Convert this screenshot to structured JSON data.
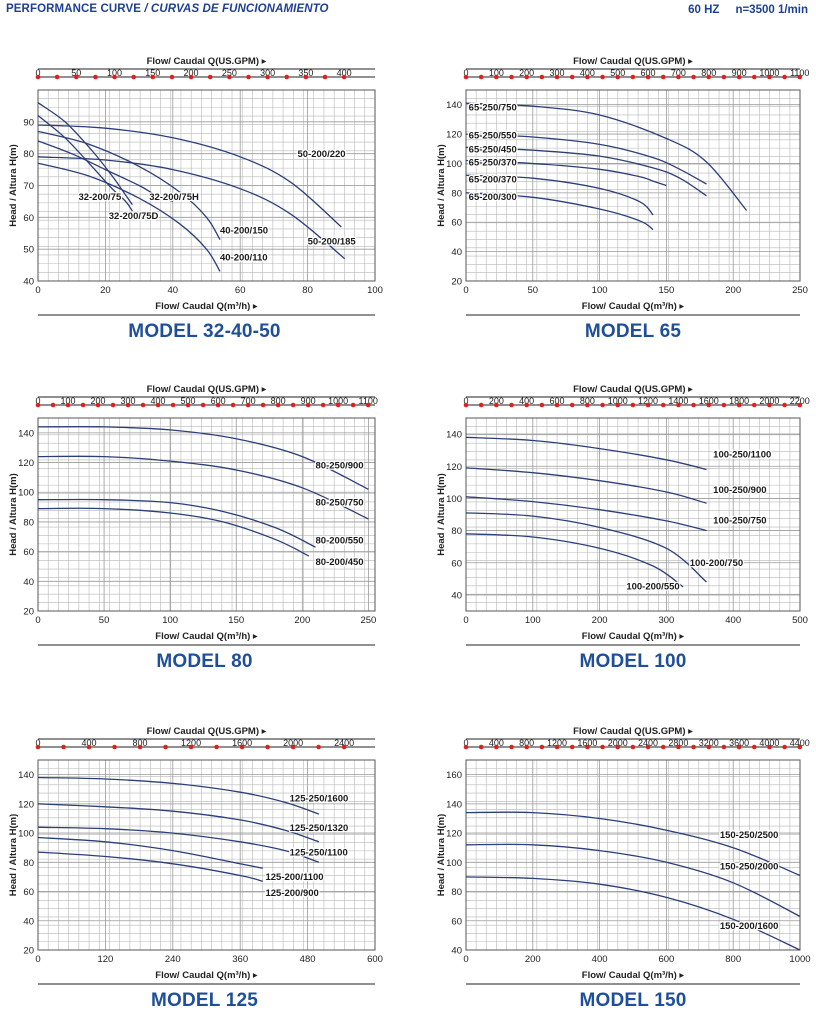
{
  "header": {
    "title": "PERFORMANCE CURVE",
    "title_es": "/ CURVAS DE FUNCIONAMIENTO",
    "frequency": "60 HZ",
    "speed": "n=3500 1/min"
  },
  "colors": {
    "curve": "#2c3e78",
    "grid": "#b8b8b8",
    "marker": "#e0211b",
    "title": "#1f4f9b",
    "header": "#1f3f94"
  },
  "axis_text": {
    "top_label": "Flow/ Caudal Q(US.GPM)",
    "bottom_label": "Flow/ Caudal Q(m³/h)",
    "y_label": "Head / Altura H(m)"
  },
  "chart_data": [
    {
      "type": "line",
      "title": "MODEL 32-40-50",
      "xlabel": "Flow/ Caudal Q(m³/h)",
      "x2label": "Flow/ Caudal Q(US.GPM)",
      "ylabel": "Head / Altura H(m)",
      "xlim": [
        0,
        100
      ],
      "ylim": [
        40,
        100
      ],
      "xticks": [
        0,
        20,
        40,
        60,
        80,
        100
      ],
      "yticks": [
        40,
        50,
        60,
        70,
        80,
        90
      ],
      "x2ticks": [
        0,
        50,
        100,
        150,
        200,
        250,
        300,
        350,
        400
      ],
      "x2_per_x": 4.403,
      "series": [
        {
          "name": "50-200/220",
          "x": [
            0,
            20,
            40,
            60,
            75,
            90
          ],
          "y": [
            89,
            88,
            85,
            79,
            71,
            57
          ]
        },
        {
          "name": "50-200/185",
          "x": [
            0,
            20,
            40,
            60,
            75,
            91
          ],
          "y": [
            79,
            78,
            75,
            69,
            61,
            47
          ]
        },
        {
          "name": "40-200/150",
          "x": [
            0,
            15,
            30,
            42,
            50,
            54
          ],
          "y": [
            87,
            83,
            76,
            68,
            60,
            53
          ]
        },
        {
          "name": "40-200/110",
          "x": [
            0,
            15,
            30,
            42,
            50,
            54
          ],
          "y": [
            77,
            73,
            66,
            58,
            50,
            43
          ]
        },
        {
          "name": "32-200/75H",
          "x": [
            0,
            10,
            20,
            30,
            35,
            40
          ],
          "y": [
            84,
            80,
            75,
            70,
            67,
            65
          ]
        },
        {
          "name": "32-200/75",
          "x": [
            0,
            8,
            16,
            22,
            26,
            28
          ],
          "y": [
            96,
            90,
            81,
            73,
            67,
            64
          ]
        },
        {
          "name": "32-200/75D",
          "x": [
            0,
            8,
            16,
            22,
            26,
            28
          ],
          "y": [
            92,
            85,
            76,
            69,
            65,
            62
          ]
        }
      ],
      "labels": [
        {
          "text": "50-200/220",
          "x": 77,
          "y": 79
        },
        {
          "text": "50-200/185",
          "x": 80,
          "y": 51.5
        },
        {
          "text": "40-200/150",
          "x": 54,
          "y": 55
        },
        {
          "text": "40-200/110",
          "x": 54,
          "y": 46.5
        },
        {
          "text": "32-200/75H",
          "x": 33,
          "y": 65.5
        },
        {
          "text": "32-200/75",
          "x": 12,
          "y": 65.5
        },
        {
          "text": "32-200/75D",
          "x": 21,
          "y": 59.5
        }
      ]
    },
    {
      "type": "line",
      "title": "MODEL 65",
      "xlabel": "Flow/ Caudal Q(m³/h)",
      "x2label": "Flow/ Caudal Q(US.GPM)",
      "ylabel": "Head / Altura H(m)",
      "xlim": [
        0,
        250
      ],
      "ylim": [
        20,
        150
      ],
      "xticks": [
        0,
        50,
        100,
        150,
        200,
        250
      ],
      "yticks": [
        20,
        40,
        60,
        80,
        100,
        120,
        140
      ],
      "x2ticks": [
        0,
        100,
        200,
        300,
        400,
        500,
        600,
        700,
        800,
        900,
        1000,
        1100
      ],
      "x2_per_x": 4.403,
      "series": [
        {
          "name": "65-250/750",
          "x": [
            0,
            50,
            100,
            150,
            180,
            210
          ],
          "y": [
            141,
            139,
            133,
            117,
            101,
            68
          ]
        },
        {
          "name": "65-250/550",
          "x": [
            0,
            50,
            100,
            140,
            160,
            180
          ],
          "y": [
            120,
            118,
            113,
            104,
            96,
            86
          ]
        },
        {
          "name": "65-250/450",
          "x": [
            0,
            50,
            100,
            140,
            160,
            180
          ],
          "y": [
            111,
            109,
            105,
            97,
            90,
            78
          ]
        },
        {
          "name": "65-250/370",
          "x": [
            0,
            50,
            100,
            130,
            140,
            150
          ],
          "y": [
            102,
            100,
            96,
            91,
            88,
            85
          ]
        },
        {
          "name": "65-200/370",
          "x": [
            0,
            50,
            100,
            130,
            140
          ],
          "y": [
            92,
            90,
            83,
            74,
            65
          ]
        },
        {
          "name": "65-200/300",
          "x": [
            0,
            50,
            100,
            130,
            140
          ],
          "y": [
            80,
            77,
            69,
            61,
            55
          ]
        }
      ],
      "labels": [
        {
          "text": "65-250/750",
          "x": 2,
          "y": 136
        },
        {
          "text": "65-250/550",
          "x": 2,
          "y": 117
        },
        {
          "text": "65-250/450",
          "x": 2,
          "y": 107.5
        },
        {
          "text": "65-250/370",
          "x": 2,
          "y": 98.5
        },
        {
          "text": "65-200/370",
          "x": 2,
          "y": 87
        },
        {
          "text": "65-200/300",
          "x": 2,
          "y": 75
        }
      ]
    },
    {
      "type": "line",
      "title": "MODEL 80",
      "xlabel": "Flow/ Caudal Q(m³/h)",
      "x2label": "Flow/ Caudal Q(US.GPM)",
      "ylabel": "Head / Altura H(m)",
      "xlim": [
        0,
        255
      ],
      "ylim": [
        20,
        150
      ],
      "xticks": [
        0,
        50,
        100,
        150,
        200,
        250
      ],
      "yticks": [
        20,
        40,
        60,
        80,
        100,
        120,
        140
      ],
      "x2ticks": [
        0,
        100,
        200,
        300,
        400,
        500,
        600,
        700,
        800,
        900,
        1000,
        1100
      ],
      "x2_per_x": 4.403,
      "series": [
        {
          "name": "80-250/900",
          "x": [
            0,
            50,
            100,
            150,
            200,
            250
          ],
          "y": [
            144,
            144,
            142,
            136,
            124,
            102
          ]
        },
        {
          "name": "80-250/750",
          "x": [
            0,
            50,
            100,
            150,
            200,
            250
          ],
          "y": [
            124,
            124,
            121,
            115,
            103,
            82
          ]
        },
        {
          "name": "80-200/550",
          "x": [
            0,
            50,
            100,
            140,
            180,
            210
          ],
          "y": [
            95,
            95,
            93,
            87,
            76,
            63
          ]
        },
        {
          "name": "80-200/450",
          "x": [
            0,
            50,
            100,
            140,
            180,
            205
          ],
          "y": [
            89,
            89,
            86,
            80,
            68,
            57
          ]
        }
      ],
      "labels": [
        {
          "text": "80-250/900",
          "x": 210,
          "y": 116
        },
        {
          "text": "80-250/750",
          "x": 210,
          "y": 91
        },
        {
          "text": "80-200/550",
          "x": 210,
          "y": 65.5
        },
        {
          "text": "80-200/450",
          "x": 210,
          "y": 51
        }
      ]
    },
    {
      "type": "line",
      "title": "MODEL 100",
      "xlabel": "Flow/ Caudal Q(m³/h)",
      "x2label": "Flow/ Caudal Q(US.GPM)",
      "ylabel": "Head / Altura H(m)",
      "xlim": [
        0,
        500
      ],
      "ylim": [
        30,
        150
      ],
      "xticks": [
        0,
        100,
        200,
        300,
        400,
        500
      ],
      "yticks": [
        40,
        60,
        80,
        100,
        120,
        140
      ],
      "x2ticks": [
        0,
        200,
        400,
        600,
        800,
        1000,
        1200,
        1400,
        1600,
        1800,
        2000,
        2200
      ],
      "x2_per_x": 4.403,
      "series": [
        {
          "name": "100-250/1100",
          "x": [
            0,
            100,
            200,
            300,
            360
          ],
          "y": [
            138,
            136,
            131,
            124,
            118
          ]
        },
        {
          "name": "100-250/900",
          "x": [
            0,
            100,
            200,
            300,
            360
          ],
          "y": [
            119,
            116,
            111,
            104,
            97
          ]
        },
        {
          "name": "100-250/750",
          "x": [
            0,
            100,
            200,
            300,
            360
          ],
          "y": [
            101,
            98,
            93,
            86,
            80
          ]
        },
        {
          "name": "100-200/750",
          "x": [
            0,
            100,
            200,
            300,
            360
          ],
          "y": [
            91,
            89,
            82,
            69,
            48
          ]
        },
        {
          "name": "100-200/550",
          "x": [
            0,
            100,
            200,
            280,
            325
          ],
          "y": [
            78,
            76,
            69,
            58,
            45
          ]
        }
      ],
      "labels": [
        {
          "text": "100-250/1100",
          "x": 370,
          "y": 125.5
        },
        {
          "text": "100-250/900",
          "x": 370,
          "y": 103.5
        },
        {
          "text": "100-250/750",
          "x": 370,
          "y": 84.5
        },
        {
          "text": "100-200/750",
          "x": 335,
          "y": 58
        },
        {
          "text": "100-200/550",
          "x": 240,
          "y": 43.5
        }
      ]
    },
    {
      "type": "line",
      "title": "MODEL 125",
      "xlabel": "Flow/ Caudal Q(m³/h)",
      "x2label": "Flow/ Caudal Q(US.GPM)",
      "ylabel": "Head / Altura H(m)",
      "xlim": [
        0,
        600
      ],
      "ylim": [
        20,
        150
      ],
      "xticks": [
        0,
        120,
        240,
        360,
        480,
        600
      ],
      "yticks": [
        20,
        40,
        60,
        80,
        100,
        120,
        140
      ],
      "x2ticks": [
        0,
        400,
        800,
        1200,
        1600,
        2000,
        2400
      ],
      "x2_per_x": 4.403,
      "series": [
        {
          "name": "125-250/1600",
          "x": [
            0,
            120,
            240,
            360,
            440,
            500
          ],
          "y": [
            138,
            137,
            134,
            128,
            121,
            113
          ]
        },
        {
          "name": "125-250/1320",
          "x": [
            0,
            120,
            240,
            360,
            440,
            500
          ],
          "y": [
            120,
            118,
            115,
            109,
            102,
            94
          ]
        },
        {
          "name": "125-250/1100",
          "x": [
            0,
            120,
            240,
            360,
            440,
            500
          ],
          "y": [
            104,
            103,
            100,
            94,
            88,
            80
          ]
        },
        {
          "name": "125-200/1100",
          "x": [
            0,
            120,
            240,
            360,
            400
          ],
          "y": [
            97,
            94,
            88,
            79,
            76
          ]
        },
        {
          "name": "125-200/900",
          "x": [
            0,
            120,
            240,
            360,
            400
          ],
          "y": [
            87,
            84,
            79,
            71,
            67
          ]
        }
      ],
      "labels": [
        {
          "text": "125-250/1600",
          "x": 448,
          "y": 121.5
        },
        {
          "text": "125-250/1320",
          "x": 448,
          "y": 101.5
        },
        {
          "text": "125-250/1100",
          "x": 448,
          "y": 84.5
        },
        {
          "text": "125-200/1100",
          "x": 405,
          "y": 68
        },
        {
          "text": "125-200/900",
          "x": 405,
          "y": 57
        }
      ]
    },
    {
      "type": "line",
      "title": "MODEL 150",
      "xlabel": "Flow/ Caudal Q(m³/h)",
      "x2label": "Flow/ Caudal Q(US.GPM)",
      "ylabel": "Head / Altura H(m)",
      "xlim": [
        0,
        1000
      ],
      "ylim": [
        40,
        170
      ],
      "xticks": [
        0,
        200,
        400,
        600,
        800,
        1000
      ],
      "yticks": [
        40,
        60,
        80,
        100,
        120,
        140,
        160
      ],
      "x2ticks": [
        0,
        400,
        800,
        1200,
        1600,
        2000,
        2400,
        2800,
        3200,
        3600,
        4000,
        4400
      ],
      "x2_per_x": 4.403,
      "series": [
        {
          "name": "150-250/2500",
          "x": [
            0,
            200,
            400,
            600,
            800,
            1000
          ],
          "y": [
            134,
            134,
            130,
            122,
            110,
            91
          ]
        },
        {
          "name": "150-250/2000",
          "x": [
            0,
            200,
            400,
            600,
            800,
            1000
          ],
          "y": [
            112,
            112,
            108,
            100,
            86,
            63
          ]
        },
        {
          "name": "150-200/1600",
          "x": [
            0,
            200,
            400,
            600,
            800,
            1000
          ],
          "y": [
            90,
            89,
            85,
            76,
            61,
            40
          ]
        }
      ],
      "labels": [
        {
          "text": "150-250/2500",
          "x": 760,
          "y": 116.5
        },
        {
          "text": "150-250/2000",
          "x": 760,
          "y": 95
        },
        {
          "text": "150-200/1600",
          "x": 760,
          "y": 54.5
        }
      ]
    }
  ]
}
